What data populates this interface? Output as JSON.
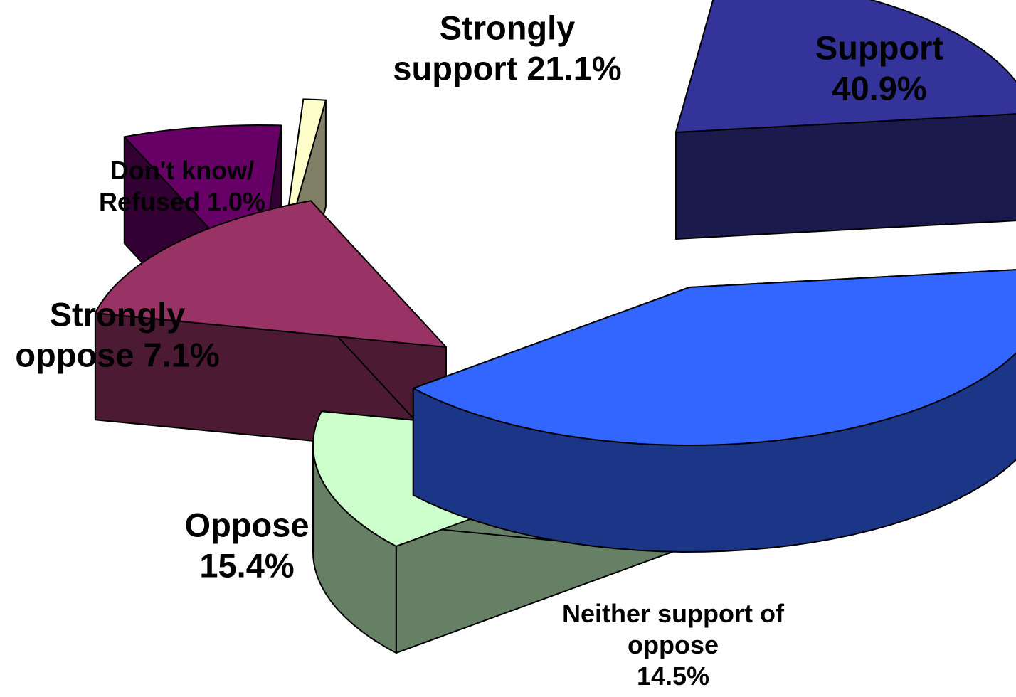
{
  "chart_data": {
    "type": "pie",
    "style": "3d-exploded",
    "slices": [
      {
        "key": "support",
        "lines": [
          "Support",
          "40.9%"
        ],
        "value": 40.9,
        "color": "#3366ff",
        "side_color": "#1b3587"
      },
      {
        "key": "neither",
        "lines": [
          "Neither support of",
          "oppose",
          "14.5%"
        ],
        "value": 14.5,
        "color": "#ccffcc",
        "side_color": "#668066"
      },
      {
        "key": "oppose",
        "lines": [
          "Oppose",
          "15.4%"
        ],
        "value": 15.4,
        "color": "#993366",
        "side_color": "#4d1a33"
      },
      {
        "key": "strongly-oppose",
        "lines": [
          "Strongly",
          "oppose 7.1%"
        ],
        "value": 7.1,
        "color": "#660066",
        "side_color": "#330033"
      },
      {
        "key": "dont-know",
        "lines": [
          "Don't know/",
          "Refused 1.0%"
        ],
        "value": 1.0,
        "color": "#ffffcc",
        "side_color": "#808066"
      },
      {
        "key": "strongly-support",
        "lines": [
          "Strongly",
          "support 21.1%"
        ],
        "value": 21.1,
        "color": "#333399",
        "side_color": "#1a1a4d"
      }
    ]
  }
}
